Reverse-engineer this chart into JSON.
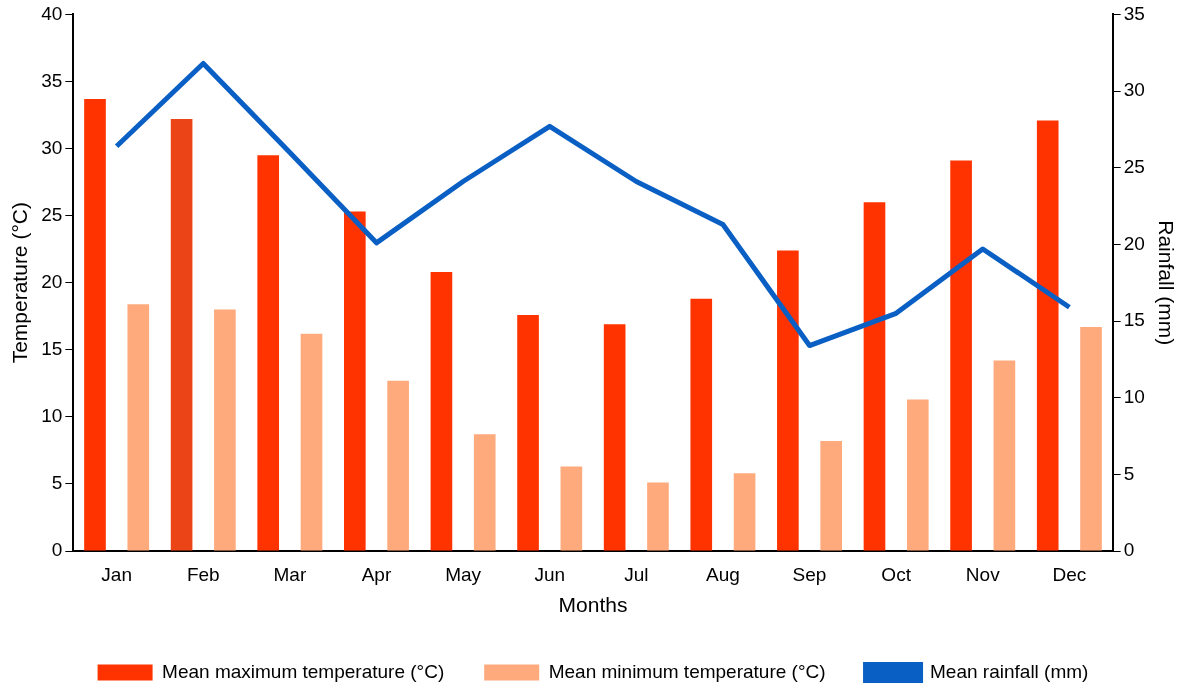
{
  "chart_data": {
    "type": "bar",
    "xlabel": "Months",
    "ylabel": "Temperature (°C)",
    "y2label": "Rainfall (mm)",
    "categories": [
      "Jan",
      "Feb",
      "Mar",
      "Apr",
      "May",
      "Jun",
      "Jul",
      "Aug",
      "Sep",
      "Oct",
      "Nov",
      "Dec"
    ],
    "series": [
      {
        "name": "Mean maximum temperature (°C)",
        "color": "#ff3300",
        "colors": [
          "#ff3300",
          "#eb4517",
          "#ff3300",
          "#ff3300",
          "#ff3300",
          "#ff3300",
          "#ff3300",
          "#ff3300",
          "#ff3300",
          "#ff3300",
          "#ff3300",
          "#ff3300"
        ],
        "values": [
          33.7,
          32.2,
          29.5,
          25.3,
          20.8,
          17.6,
          16.9,
          18.8,
          22.4,
          26.0,
          29.1,
          32.1
        ]
      },
      {
        "name": "Mean minimum temperature (°C)",
        "color": "#ffaa7d",
        "values": [
          18.4,
          18.0,
          16.2,
          12.7,
          8.7,
          6.3,
          5.1,
          5.8,
          8.2,
          11.3,
          14.2,
          16.7
        ]
      },
      {
        "name": "Mean rainfall (mm)",
        "type": "line",
        "axis": "y2",
        "color": "#0a5fc4",
        "values": [
          26.4,
          31.8,
          26.0,
          20.1,
          24.1,
          27.7,
          24.1,
          21.3,
          13.4,
          15.5,
          19.7,
          15.9
        ]
      }
    ],
    "ylim": [
      0,
      40
    ],
    "yticks": [
      0,
      5,
      10,
      15,
      20,
      25,
      30,
      35,
      40
    ],
    "y2lim": [
      0,
      35
    ],
    "y2ticks": [
      0,
      5,
      10,
      15,
      20,
      25,
      30,
      35
    ],
    "grid": false,
    "legend": "bottom",
    "marker": "none"
  }
}
